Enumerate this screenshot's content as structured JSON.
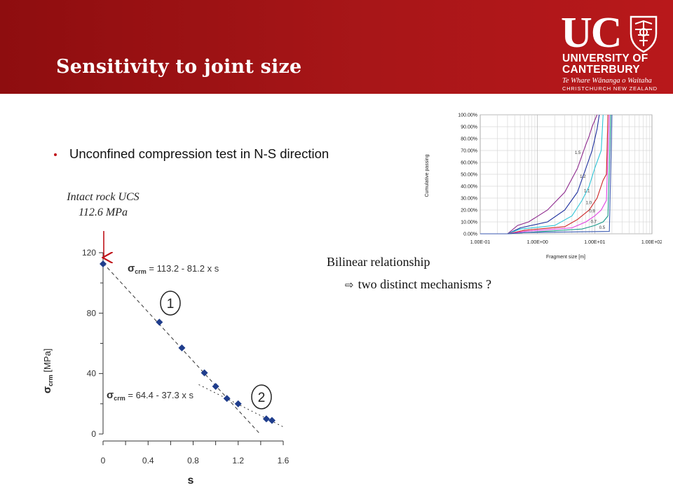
{
  "slide": {
    "title": "Sensitivity to joint size",
    "bullet": "Unconfined compression test in N-S direction",
    "intact_line1": "Intact rock UCS",
    "intact_line2": "112.6 MPa",
    "bilinear": "Bilinear relationship",
    "mechanisms": "two distinct  mechanisms ?",
    "marker1": "1",
    "marker2": "2"
  },
  "logo": {
    "uc": "UC",
    "line1": "UNIVERSITY OF",
    "line2": "CANTERBURY",
    "maori": "Te Whare Wānanga o Waitaha",
    "city": "CHRISTCHURCH NEW ZEALAND"
  },
  "colors": {
    "header": "#a81618",
    "accent": "#c0141a",
    "points": "#1f3d8c"
  },
  "chart_data": [
    {
      "type": "scatter",
      "title": "",
      "xlabel": "s",
      "ylabel": "σcrm [MPa]",
      "xlim": [
        0,
        1.6
      ],
      "ylim": [
        0,
        120
      ],
      "xticks": [
        "0",
        "0.4",
        "0.8",
        "1.2",
        "1.6"
      ],
      "yticks": [
        "0",
        "40",
        "80",
        "120"
      ],
      "points": [
        {
          "x": 0,
          "y": 112.6
        },
        {
          "x": 0.5,
          "y": 74
        },
        {
          "x": 0.7,
          "y": 57
        },
        {
          "x": 0.9,
          "y": 40.5
        },
        {
          "x": 1.0,
          "y": 31.5
        },
        {
          "x": 1.1,
          "y": 23.5
        },
        {
          "x": 1.2,
          "y": 20
        },
        {
          "x": 1.45,
          "y": 10
        },
        {
          "x": 1.5,
          "y": 9
        }
      ],
      "fit_lines": [
        {
          "label": "σcrm = 113.2 - 81.2 x s",
          "intercept": 113.2,
          "slope": -81.2
        },
        {
          "label": "σcrm = 64.4 - 37.3 x s",
          "intercept": 64.4,
          "slope": -37.3
        }
      ],
      "eq1_prefix": "σ",
      "eq1_sub": "crm",
      "eq1_rest": " = 113.2 - 81.2 x s",
      "eq2_prefix": "σ",
      "eq2_sub": "crm",
      "eq2_rest": " = 64.4 - 37.3 x s",
      "ylabel_sigma": "σ",
      "ylabel_sub": "crm",
      "ylabel_rest": " [MPa]"
    },
    {
      "type": "line",
      "title": "",
      "xlabel": "Fragment size [m]",
      "ylabel": "Cumulative passing",
      "x_scale": "log",
      "xlim": [
        0.1,
        100
      ],
      "ylim": [
        0,
        1
      ],
      "xticks": [
        "1.00E-01",
        "1.00E+00",
        "1.00E+01",
        "1.00E+02"
      ],
      "yticks": [
        "0.00%",
        "10.00%",
        "20.00%",
        "30.00%",
        "40.00%",
        "50.00%",
        "60.00%",
        "70.00%",
        "80.00%",
        "90.00%",
        "100.00%"
      ],
      "series": [
        {
          "name": "1.5",
          "color": "#8e2a8e",
          "points": [
            [
              0.1,
              0
            ],
            [
              0.3,
              0
            ],
            [
              0.45,
              0.07
            ],
            [
              0.7,
              0.1
            ],
            [
              1.5,
              0.2
            ],
            [
              3,
              0.35
            ],
            [
              5,
              0.55
            ],
            [
              7,
              0.75
            ],
            [
              8,
              0.82
            ],
            [
              9,
              0.9
            ],
            [
              11,
              1
            ]
          ]
        },
        {
          "name": "1.2",
          "color": "#1d2f9e",
          "points": [
            [
              0.1,
              0
            ],
            [
              0.3,
              0
            ],
            [
              0.5,
              0.05
            ],
            [
              1.5,
              0.1
            ],
            [
              3,
              0.2
            ],
            [
              5,
              0.35
            ],
            [
              7,
              0.55
            ],
            [
              9,
              0.7
            ],
            [
              11,
              0.88
            ],
            [
              12,
              1
            ]
          ]
        },
        {
          "name": "1.1",
          "color": "#2ec4d6",
          "points": [
            [
              0.1,
              0
            ],
            [
              0.3,
              0
            ],
            [
              0.5,
              0.04
            ],
            [
              2,
              0.07
            ],
            [
              4,
              0.15
            ],
            [
              6,
              0.28
            ],
            [
              8,
              0.4
            ],
            [
              10,
              0.55
            ],
            [
              13,
              0.7
            ],
            [
              14,
              1
            ]
          ]
        },
        {
          "name": "1.0",
          "color": "#cc2222",
          "points": [
            [
              0.1,
              0
            ],
            [
              0.3,
              0
            ],
            [
              0.6,
              0.03
            ],
            [
              3,
              0.06
            ],
            [
              5,
              0.12
            ],
            [
              8,
              0.2
            ],
            [
              11,
              0.3
            ],
            [
              14,
              0.45
            ],
            [
              16,
              0.5
            ],
            [
              17,
              1
            ]
          ]
        },
        {
          "name": "0.9",
          "color": "#e040e0",
          "points": [
            [
              0.1,
              0
            ],
            [
              0.3,
              0
            ],
            [
              0.6,
              0.02
            ],
            [
              4,
              0.05
            ],
            [
              7,
              0.1
            ],
            [
              10,
              0.15
            ],
            [
              13,
              0.2
            ],
            [
              16,
              0.28
            ],
            [
              18,
              1
            ]
          ]
        },
        {
          "name": "0.7",
          "color": "#1a9a8a",
          "points": [
            [
              0.1,
              0
            ],
            [
              0.3,
              0
            ],
            [
              0.6,
              0.01
            ],
            [
              6,
              0.04
            ],
            [
              10,
              0.07
            ],
            [
              14,
              0.1
            ],
            [
              17,
              0.15
            ],
            [
              19,
              1
            ]
          ]
        },
        {
          "name": "0.5",
          "color": "#3a5ab0",
          "points": [
            [
              0.1,
              0
            ],
            [
              0.3,
              0
            ],
            [
              0.6,
              0.01
            ],
            [
              18,
              0.02
            ],
            [
              20,
              1
            ]
          ]
        }
      ]
    }
  ]
}
